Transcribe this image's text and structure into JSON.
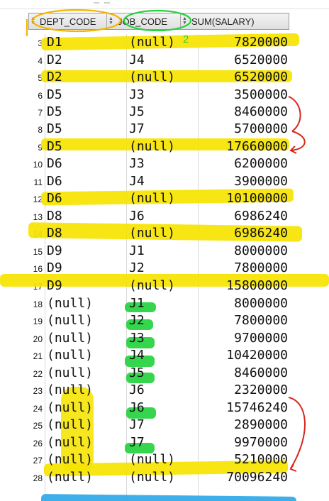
{
  "table": {
    "headers": [
      {
        "label": "DEPT_CODE"
      },
      {
        "label": "JOB_CODE"
      },
      {
        "label": "SUM(SALARY)"
      }
    ],
    "rows": [
      {
        "num": "3",
        "dept": "D1",
        "job": "(null)",
        "sum": "7820000"
      },
      {
        "num": "4",
        "dept": "D2",
        "job": "J4",
        "sum": "6520000"
      },
      {
        "num": "5",
        "dept": "D2",
        "job": "(null)",
        "sum": "6520000"
      },
      {
        "num": "6",
        "dept": "D5",
        "job": "J3",
        "sum": "3500000"
      },
      {
        "num": "7",
        "dept": "D5",
        "job": "J5",
        "sum": "8460000"
      },
      {
        "num": "8",
        "dept": "D5",
        "job": "J7",
        "sum": "5700000"
      },
      {
        "num": "9",
        "dept": "D5",
        "job": "(null)",
        "sum": "17660000"
      },
      {
        "num": "10",
        "dept": "D6",
        "job": "J3",
        "sum": "6200000"
      },
      {
        "num": "11",
        "dept": "D6",
        "job": "J4",
        "sum": "3900000"
      },
      {
        "num": "12",
        "dept": "D6",
        "job": "(null)",
        "sum": "10100000"
      },
      {
        "num": "13",
        "dept": "D8",
        "job": "J6",
        "sum": "6986240"
      },
      {
        "num": "14",
        "dept": "D8",
        "job": "(null)",
        "sum": "6986240"
      },
      {
        "num": "15",
        "dept": "D9",
        "job": "J1",
        "sum": "8000000"
      },
      {
        "num": "16",
        "dept": "D9",
        "job": "J2",
        "sum": "7800000"
      },
      {
        "num": "17",
        "dept": "D9",
        "job": "(null)",
        "sum": "15800000"
      },
      {
        "num": "18",
        "dept": "(null)",
        "job": "J1",
        "sum": "8000000"
      },
      {
        "num": "19",
        "dept": "(null)",
        "job": "J2",
        "sum": "7800000"
      },
      {
        "num": "20",
        "dept": "(null)",
        "job": "J3",
        "sum": "9700000"
      },
      {
        "num": "21",
        "dept": "(null)",
        "job": "J4",
        "sum": "10420000"
      },
      {
        "num": "22",
        "dept": "(null)",
        "job": "J5",
        "sum": "8460000"
      },
      {
        "num": "23",
        "dept": "(null)",
        "job": "J6",
        "sum": "2320000"
      },
      {
        "num": "24",
        "dept": "(null)",
        "job": "J6",
        "sum": "15746240"
      },
      {
        "num": "25",
        "dept": "(null)",
        "job": "J7",
        "sum": "2890000"
      },
      {
        "num": "26",
        "dept": "(null)",
        "job": "J7",
        "sum": "9970000"
      },
      {
        "num": "27",
        "dept": "(null)",
        "job": "(null)",
        "sum": "5210000"
      },
      {
        "num": "28",
        "dept": "(null)",
        "job": "(null)",
        "sum": "70096240"
      }
    ]
  },
  "annotations": {
    "mark_1": "1",
    "mark_2": "2",
    "colors": {
      "yellow": "#f6e400",
      "green": "#24d33f",
      "blue": "#2ea8e8",
      "red": "#d7261b",
      "orange": "#f2b500"
    }
  }
}
